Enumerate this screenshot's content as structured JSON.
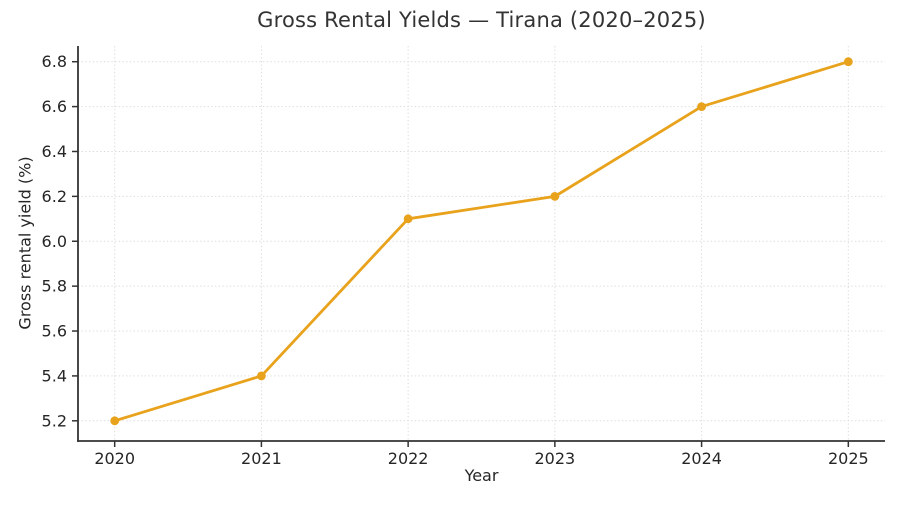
{
  "chart_data": {
    "type": "line",
    "title": "Gross Rental Yields — Tirana (2020–2025)",
    "xlabel": "Year",
    "ylabel": "Gross rental yield (%)",
    "x": [
      2020,
      2021,
      2022,
      2023,
      2024,
      2025
    ],
    "series": [
      {
        "name": "Gross rental yield (%)",
        "values": [
          5.2,
          5.4,
          6.1,
          6.2,
          6.6,
          6.8
        ]
      }
    ],
    "xticks": [
      2020,
      2021,
      2022,
      2023,
      2024,
      2025
    ],
    "xtick_labels": [
      "2020",
      "2021",
      "2022",
      "2023",
      "2024",
      "2025"
    ],
    "yticks": [
      5.2,
      5.4,
      5.6,
      5.8,
      6.0,
      6.2,
      6.4,
      6.6,
      6.8
    ],
    "ytick_labels": [
      "5.2",
      "5.4",
      "5.6",
      "5.8",
      "6.0",
      "6.2",
      "6.4",
      "6.6",
      "6.8"
    ],
    "xlim": [
      2019.75,
      2025.25
    ],
    "ylim": [
      5.11,
      6.87
    ],
    "grid": "dotted",
    "legend": "none",
    "marker": "circle",
    "colors": {
      "line": "#E8A21C",
      "marker": "#E8A21C",
      "grid": "#d9d9d9",
      "axis": "#333333",
      "tick": "#333333",
      "text": "#262626",
      "title": "#333333",
      "background": "#ffffff"
    }
  }
}
